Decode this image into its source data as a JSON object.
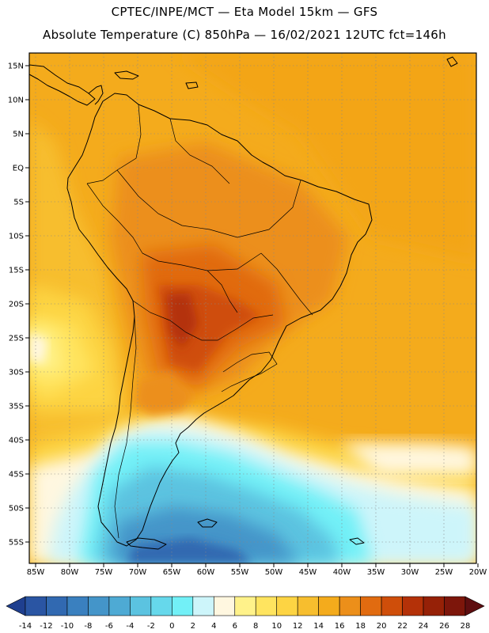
{
  "header": {
    "line1": "CPTEC/INPE/MCT —  Eta Model 15km — GFS",
    "line2": "Absolute Temperature (C) 850hPa — 16/02/2021 12UTC fct=146h"
  },
  "map": {
    "region": "South America",
    "lat_labels": [
      "15N",
      "10N",
      "5N",
      "EQ",
      "5S",
      "10S",
      "15S",
      "20S",
      "25S",
      "30S",
      "35S",
      "40S",
      "45S",
      "50S",
      "55S"
    ],
    "lon_labels": [
      "85W",
      "80W",
      "75W",
      "70W",
      "65W",
      "60W",
      "55W",
      "50W",
      "45W",
      "40W",
      "35W",
      "30W",
      "25W",
      "20W"
    ]
  },
  "colorbar": {
    "labels": [
      "-14",
      "-12",
      "-10",
      "-8",
      "-6",
      "-4",
      "-2",
      "0",
      "2",
      "4",
      "6",
      "8",
      "10",
      "12",
      "14",
      "16",
      "18",
      "20",
      "22",
      "24",
      "26",
      "28"
    ],
    "colors": [
      "#1f3f8f",
      "#2a55a3",
      "#3169b1",
      "#3a80bf",
      "#4495c9",
      "#4eaad4",
      "#5bc3e0",
      "#66d8eb",
      "#72f0f7",
      "#cdf5fa",
      "#fff7e0",
      "#fff28a",
      "#ffe45f",
      "#fdd443",
      "#f7be2e",
      "#f4ab1c",
      "#ec8f1a",
      "#e16b10",
      "#cf4e0a",
      "#b43108",
      "#962107",
      "#7d160b",
      "#5e0e10"
    ]
  }
}
